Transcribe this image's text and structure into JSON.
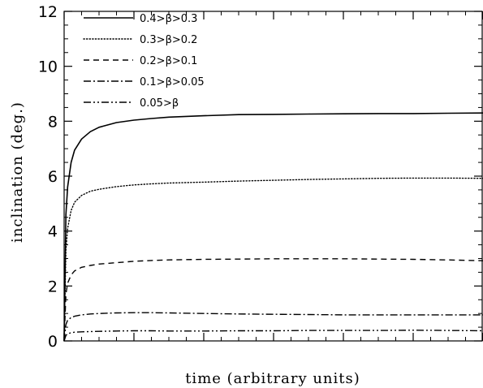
{
  "chart_data": {
    "type": "line",
    "xlabel": "time (arbitrary units)",
    "ylabel": "inclination (deg.)",
    "xlim": [
      0,
      12
    ],
    "ylim": [
      0,
      12
    ],
    "y_ticks": [
      "0",
      "2",
      "4",
      "6",
      "8",
      "10",
      "12"
    ],
    "x_ticks_labeled": false,
    "grid": false,
    "legend": "top-left",
    "series": [
      {
        "name": "0.4>β>0.3",
        "style": "solid",
        "x": [
          0,
          0.05,
          0.1,
          0.2,
          0.3,
          0.5,
          0.75,
          1,
          1.5,
          2,
          2.5,
          3,
          4,
          5,
          6,
          7,
          8,
          9,
          10,
          11,
          12
        ],
        "y": [
          0,
          4.6,
          5.6,
          6.5,
          6.95,
          7.35,
          7.62,
          7.78,
          7.95,
          8.04,
          8.1,
          8.15,
          8.2,
          8.24,
          8.25,
          8.26,
          8.27,
          8.28,
          8.28,
          8.29,
          8.3
        ]
      },
      {
        "name": "0.3>β>0.2",
        "style": "dotted",
        "x": [
          0,
          0.05,
          0.1,
          0.2,
          0.3,
          0.5,
          0.75,
          1,
          1.5,
          2,
          2.5,
          3,
          4,
          5,
          6,
          7,
          8,
          9,
          10,
          11,
          12
        ],
        "y": [
          0,
          3.3,
          4.1,
          4.75,
          5.05,
          5.3,
          5.45,
          5.52,
          5.62,
          5.68,
          5.72,
          5.75,
          5.78,
          5.82,
          5.85,
          5.88,
          5.9,
          5.92,
          5.93,
          5.93,
          5.92
        ]
      },
      {
        "name": "0.2>β>0.1",
        "style": "dashed",
        "x": [
          0,
          0.05,
          0.1,
          0.2,
          0.3,
          0.5,
          0.75,
          1,
          1.5,
          2,
          2.5,
          3,
          4,
          5,
          6,
          7,
          8,
          9,
          10,
          11,
          12
        ],
        "y": [
          0,
          1.7,
          2.1,
          2.4,
          2.55,
          2.68,
          2.75,
          2.8,
          2.85,
          2.9,
          2.93,
          2.95,
          2.97,
          2.98,
          2.99,
          2.99,
          2.99,
          2.98,
          2.97,
          2.95,
          2.92
        ]
      },
      {
        "name": "0.1>β>0.05",
        "style": "dashdot",
        "x": [
          0,
          0.05,
          0.1,
          0.2,
          0.3,
          0.5,
          0.75,
          1,
          1.5,
          2,
          2.5,
          3,
          4,
          5,
          6,
          7,
          8,
          9,
          10,
          11,
          12
        ],
        "y": [
          0,
          0.6,
          0.75,
          0.85,
          0.9,
          0.95,
          0.98,
          1.0,
          1.02,
          1.03,
          1.03,
          1.02,
          1.0,
          0.98,
          0.97,
          0.96,
          0.95,
          0.95,
          0.95,
          0.95,
          0.95
        ]
      },
      {
        "name": "0.05>β",
        "style": "dashdotdot",
        "x": [
          0,
          0.05,
          0.1,
          0.2,
          0.3,
          0.5,
          0.75,
          1,
          1.5,
          2,
          2.5,
          3,
          4,
          5,
          6,
          7,
          8,
          9,
          10,
          11,
          12
        ],
        "y": [
          0,
          0.2,
          0.26,
          0.3,
          0.32,
          0.33,
          0.34,
          0.35,
          0.36,
          0.37,
          0.37,
          0.36,
          0.36,
          0.37,
          0.37,
          0.38,
          0.38,
          0.38,
          0.39,
          0.38,
          0.37
        ]
      }
    ]
  }
}
